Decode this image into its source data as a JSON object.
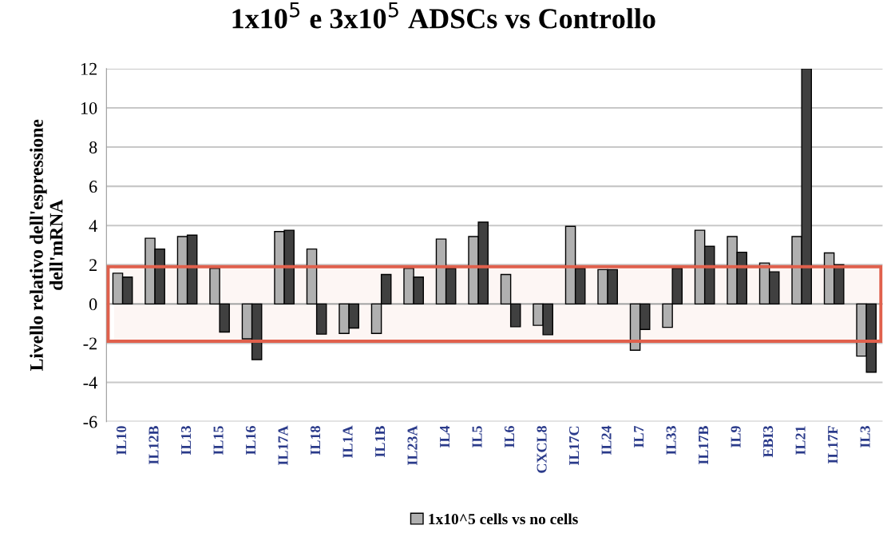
{
  "chart_data": {
    "type": "bar",
    "title": "1x10$^{5}$ e 3x10$^{5}$ ADSCs vs Controllo",
    "ylabel": "Livello relativo dell'espressione\ndell'mRNA",
    "categories": [
      "IL10",
      "IL12B",
      "IL13",
      "IL15",
      "IL16",
      "IL17A",
      "IL18",
      "IL1A",
      "IL1B",
      "IL23A",
      "IL4",
      "IL5",
      "IL6",
      "CXCL8",
      "IL17C",
      "IL24",
      "IL7",
      "IL33",
      "IL17B",
      "IL9",
      "EBI3",
      "IL21",
      "IL17F",
      "IL3"
    ],
    "series": [
      {
        "name": "1x10^5 cells vs no cells",
        "color": "#b0b0b0",
        "values": [
          1.57,
          3.35,
          3.44,
          1.82,
          -1.78,
          3.69,
          2.8,
          -1.5,
          -1.5,
          1.82,
          3.31,
          3.44,
          1.5,
          -1.09,
          3.96,
          1.75,
          -2.36,
          -1.19,
          3.76,
          3.44,
          2.09,
          3.44,
          2.6,
          -2.66
        ]
      },
      {
        "color": "#404040",
        "values": [
          1.37,
          2.8,
          3.51,
          -1.43,
          -2.84,
          3.76,
          -1.54,
          -1.23,
          1.5,
          1.37,
          1.82,
          4.17,
          -1.16,
          -1.57,
          1.82,
          1.75,
          -1.3,
          1.82,
          2.94,
          2.64,
          1.64,
          12,
          2.0,
          -3.48
        ]
      }
    ],
    "ylim": [
      -6,
      12
    ],
    "yticks": [
      -6,
      -4,
      -2,
      0,
      2,
      4,
      6,
      8,
      10,
      12
    ],
    "grid": "y",
    "legend": "bottom",
    "bands": [
      {
        "axis": "y",
        "from": -1.9,
        "to": 1.9,
        "color": "#e0604c"
      }
    ]
  }
}
